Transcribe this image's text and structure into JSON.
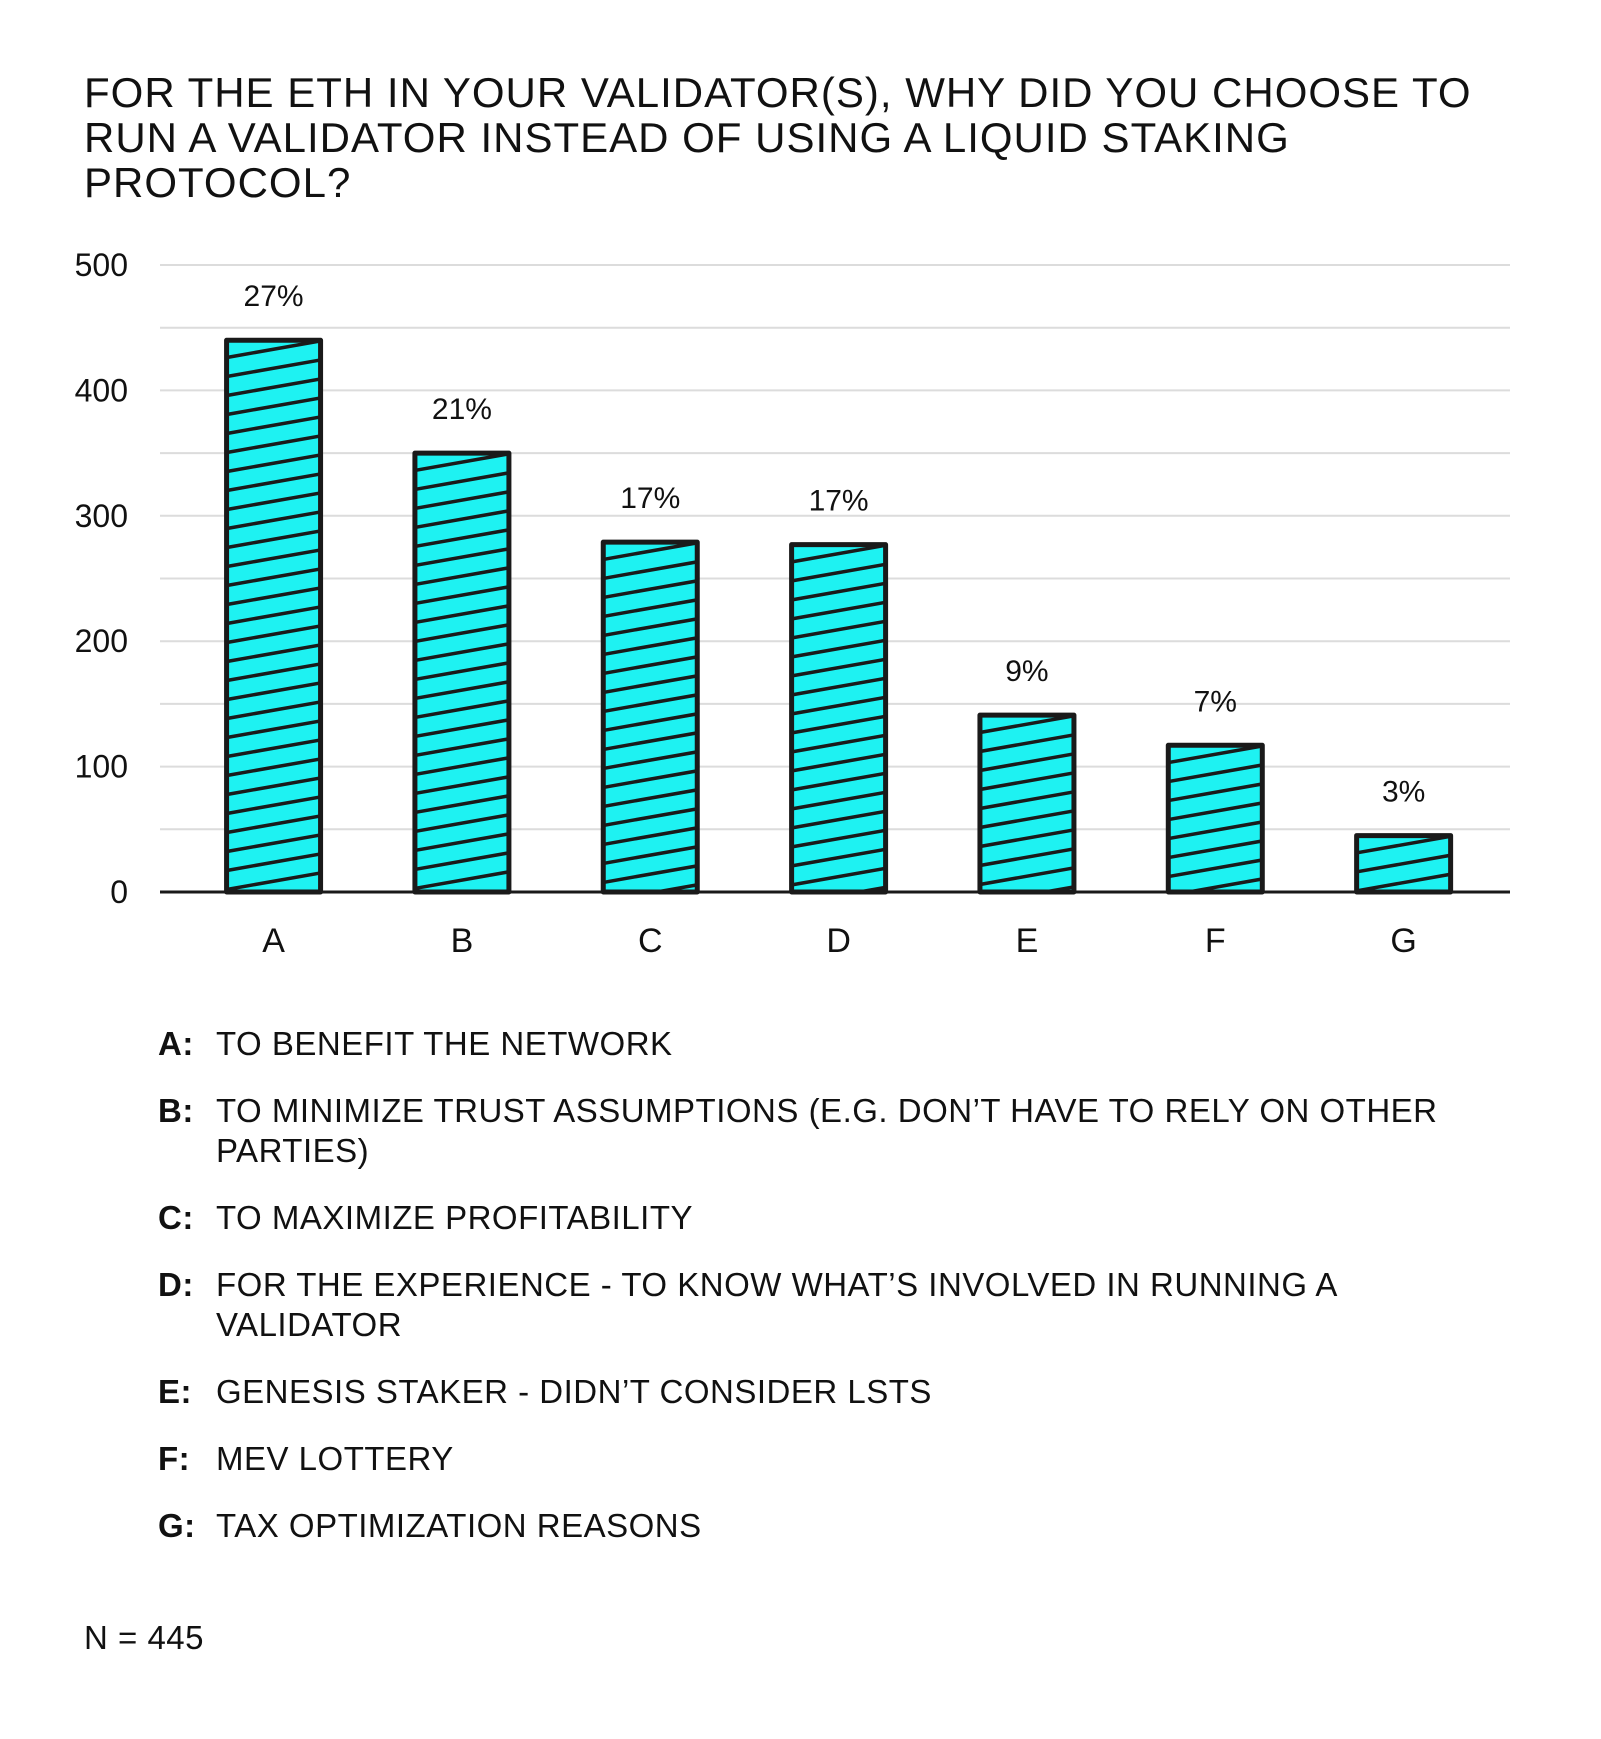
{
  "chart_data": {
    "type": "bar",
    "title": "For the ETH in your validator(s), why did you choose to run a validator instead of using a liquid staking protocol?",
    "categories": [
      "A",
      "B",
      "C",
      "D",
      "E",
      "F",
      "G"
    ],
    "values": [
      440,
      350,
      279,
      277,
      141,
      117,
      45
    ],
    "data_labels": [
      "27%",
      "21%",
      "17%",
      "17%",
      "9%",
      "7%",
      "3%"
    ],
    "y_ticks": [
      "0",
      "100",
      "200",
      "300",
      "400",
      "500"
    ],
    "ylim": [
      0,
      500
    ],
    "xlabel": "",
    "ylabel": "",
    "grid": true,
    "bar_color": "#1ef2f2",
    "outline_color": "#1a1a1a"
  },
  "legend": [
    {
      "key": "A:",
      "text": "To benefit the network"
    },
    {
      "key": "B:",
      "text": "To minimize trust assumptions (e.g. don’t have to rely on other parties)"
    },
    {
      "key": "C:",
      "text": "To maximize profitability"
    },
    {
      "key": "D:",
      "text": "For the experience - to know what’s involved in running a validator"
    },
    {
      "key": "E:",
      "text": "Genesis staker - didn’t consider LSTs"
    },
    {
      "key": "F:",
      "text": "MEV lottery"
    },
    {
      "key": "G:",
      "text": "Tax optimization reasons"
    }
  ],
  "sample_size": "N = 445"
}
